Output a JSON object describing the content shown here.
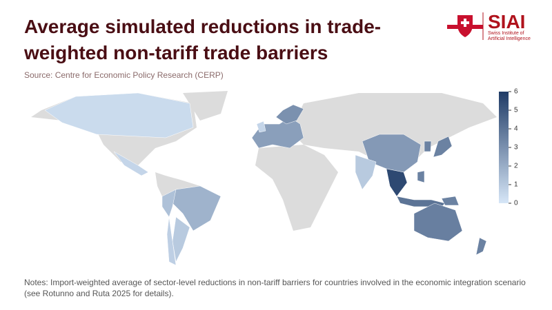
{
  "header": {
    "title": "Average simulated reductions in trade-weighted non-tariff trade barriers",
    "source": "Source: Centre for Economic Policy Research (CERP)"
  },
  "logo": {
    "name": "SIAI",
    "subtitle": "Swiss Institute of Artificial Intelligence"
  },
  "map": {
    "colorbar": {
      "lim": [
        0,
        6
      ],
      "ticks": [
        0,
        1,
        2,
        3,
        4,
        5,
        6
      ],
      "colors": [
        "#d6e6f7",
        "#1f3b66"
      ]
    },
    "land_color": "#dcdcdc",
    "values": [
      0.4,
      0.6,
      1.8,
      1.3,
      1.0,
      0.8,
      2.5,
      3.0,
      0.6,
      2.7,
      1.0,
      5.5,
      4.0,
      3.5,
      3.5,
      3.5,
      3.5,
      3.6,
      3.5
    ]
  },
  "notes": "Notes: Import-weighted average of sector-level reductions in non-tariff barriers for countries involved in the economic integration scenario (see Rotunno and Ruta 2025 for details)."
}
